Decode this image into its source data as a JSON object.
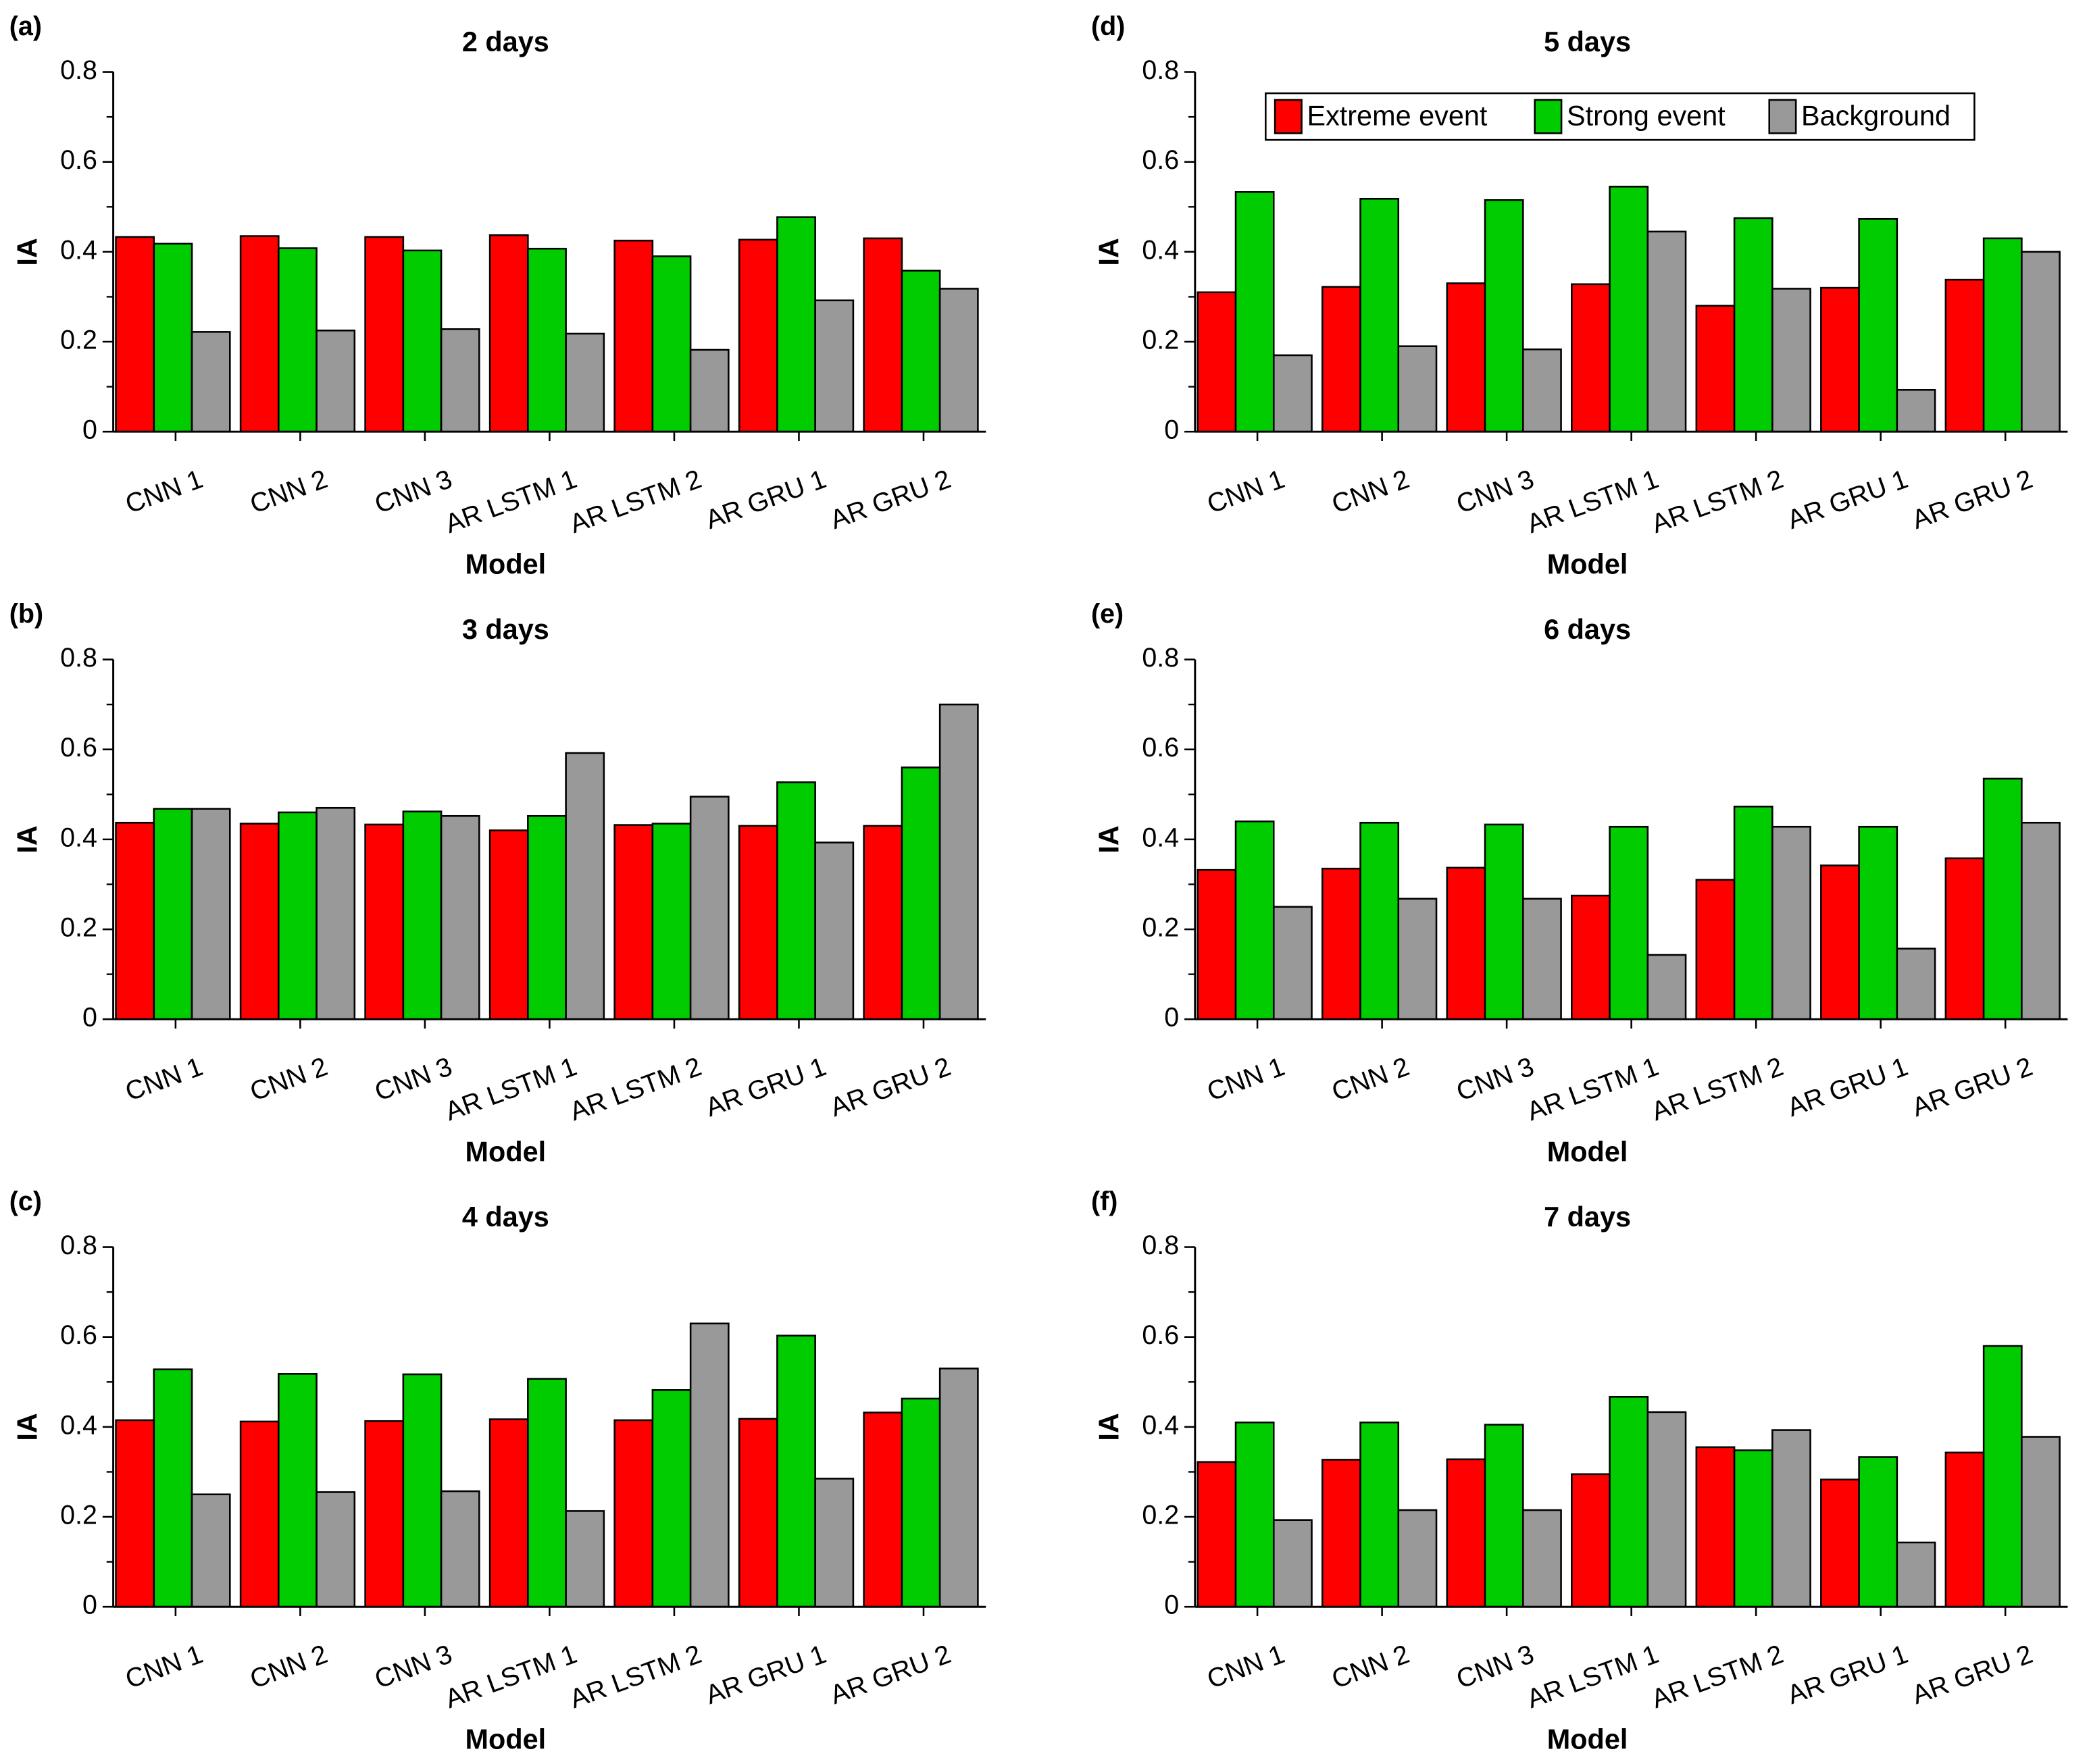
{
  "chart_data": [
    {
      "type": "bar",
      "panel": "(a)",
      "title": "2 days",
      "x_label": "Model",
      "y_label": "IA",
      "categories": [
        "CNN 1",
        "CNN 2",
        "CNN 3",
        "AR LSTM 1",
        "AR LSTM 2",
        "AR GRU 1",
        "AR GRU 2"
      ],
      "series": [
        {
          "name": "Extreme event",
          "color": "#ff0000",
          "values": [
            0.433,
            0.435,
            0.433,
            0.437,
            0.425,
            0.427,
            0.43
          ]
        },
        {
          "name": "Strong event",
          "color": "#00cc00",
          "values": [
            0.418,
            0.408,
            0.403,
            0.407,
            0.39,
            0.477,
            0.358
          ]
        },
        {
          "name": "Background",
          "color": "#999999",
          "values": [
            0.222,
            0.225,
            0.228,
            0.218,
            0.182,
            0.292,
            0.318
          ]
        }
      ],
      "ylim": [
        0,
        0.8
      ],
      "yticks": [
        0,
        0.2,
        0.4,
        0.6,
        0.8
      ]
    },
    {
      "type": "bar",
      "panel": "(b)",
      "title": "3 days",
      "x_label": "Model",
      "y_label": "IA",
      "categories": [
        "CNN 1",
        "CNN 2",
        "CNN 3",
        "AR LSTM 1",
        "AR LSTM 2",
        "AR GRU 1",
        "AR GRU 2"
      ],
      "series": [
        {
          "name": "Extreme event",
          "color": "#ff0000",
          "values": [
            0.437,
            0.435,
            0.433,
            0.42,
            0.432,
            0.43,
            0.43
          ]
        },
        {
          "name": "Strong event",
          "color": "#00cc00",
          "values": [
            0.468,
            0.46,
            0.462,
            0.452,
            0.435,
            0.527,
            0.56
          ]
        },
        {
          "name": "Background",
          "color": "#999999",
          "values": [
            0.468,
            0.47,
            0.452,
            0.592,
            0.495,
            0.393,
            0.7
          ]
        }
      ],
      "ylim": [
        0,
        0.8
      ],
      "yticks": [
        0,
        0.2,
        0.4,
        0.6,
        0.8
      ]
    },
    {
      "type": "bar",
      "panel": "(c)",
      "title": "4 days",
      "x_label": "Model",
      "y_label": "IA",
      "categories": [
        "CNN 1",
        "CNN 2",
        "CNN 3",
        "AR LSTM 1",
        "AR LSTM 2",
        "AR GRU 1",
        "AR GRU 2"
      ],
      "series": [
        {
          "name": "Extreme event",
          "color": "#ff0000",
          "values": [
            0.415,
            0.412,
            0.413,
            0.417,
            0.415,
            0.418,
            0.432
          ]
        },
        {
          "name": "Strong event",
          "color": "#00cc00",
          "values": [
            0.528,
            0.518,
            0.517,
            0.507,
            0.482,
            0.603,
            0.463
          ]
        },
        {
          "name": "Background",
          "color": "#999999",
          "values": [
            0.25,
            0.255,
            0.257,
            0.213,
            0.63,
            0.285,
            0.53
          ]
        }
      ],
      "ylim": [
        0,
        0.8
      ],
      "yticks": [
        0,
        0.2,
        0.4,
        0.6,
        0.8
      ]
    },
    {
      "type": "bar",
      "panel": "(d)",
      "title": "5 days",
      "x_label": "Model",
      "y_label": "IA",
      "legend": "top",
      "categories": [
        "CNN 1",
        "CNN 2",
        "CNN 3",
        "AR LSTM 1",
        "AR LSTM 2",
        "AR GRU 1",
        "AR GRU 2"
      ],
      "series": [
        {
          "name": "Extreme event",
          "color": "#ff0000",
          "values": [
            0.31,
            0.322,
            0.33,
            0.328,
            0.28,
            0.32,
            0.338
          ]
        },
        {
          "name": "Strong event",
          "color": "#00cc00",
          "values": [
            0.533,
            0.518,
            0.515,
            0.545,
            0.475,
            0.473,
            0.43
          ]
        },
        {
          "name": "Background",
          "color": "#999999",
          "values": [
            0.17,
            0.19,
            0.183,
            0.445,
            0.318,
            0.093,
            0.4
          ]
        }
      ],
      "ylim": [
        0,
        0.8
      ],
      "yticks": [
        0,
        0.2,
        0.4,
        0.6,
        0.8
      ]
    },
    {
      "type": "bar",
      "panel": "(e)",
      "title": "6 days",
      "x_label": "Model",
      "y_label": "IA",
      "categories": [
        "CNN 1",
        "CNN 2",
        "CNN 3",
        "AR LSTM 1",
        "AR LSTM 2",
        "AR GRU 1",
        "AR GRU 2"
      ],
      "series": [
        {
          "name": "Extreme event",
          "color": "#ff0000",
          "values": [
            0.332,
            0.335,
            0.337,
            0.275,
            0.31,
            0.342,
            0.358
          ]
        },
        {
          "name": "Strong event",
          "color": "#00cc00",
          "values": [
            0.44,
            0.437,
            0.433,
            0.428,
            0.473,
            0.428,
            0.535
          ]
        },
        {
          "name": "Background",
          "color": "#999999",
          "values": [
            0.25,
            0.268,
            0.268,
            0.143,
            0.428,
            0.157,
            0.437
          ]
        }
      ],
      "ylim": [
        0,
        0.8
      ],
      "yticks": [
        0,
        0.2,
        0.4,
        0.6,
        0.8
      ]
    },
    {
      "type": "bar",
      "panel": "(f)",
      "title": "7 days",
      "x_label": "Model",
      "y_label": "IA",
      "categories": [
        "CNN 1",
        "CNN 2",
        "CNN 3",
        "AR LSTM 1",
        "AR LSTM 2",
        "AR GRU 1",
        "AR GRU 2"
      ],
      "series": [
        {
          "name": "Extreme event",
          "color": "#ff0000",
          "values": [
            0.322,
            0.327,
            0.328,
            0.295,
            0.355,
            0.283,
            0.343
          ]
        },
        {
          "name": "Strong event",
          "color": "#00cc00",
          "values": [
            0.41,
            0.41,
            0.405,
            0.467,
            0.348,
            0.333,
            0.58
          ]
        },
        {
          "name": "Background",
          "color": "#999999",
          "values": [
            0.193,
            0.215,
            0.215,
            0.433,
            0.393,
            0.143,
            0.378
          ]
        }
      ],
      "ylim": [
        0,
        0.8
      ],
      "yticks": [
        0,
        0.2,
        0.4,
        0.6,
        0.8
      ]
    }
  ]
}
